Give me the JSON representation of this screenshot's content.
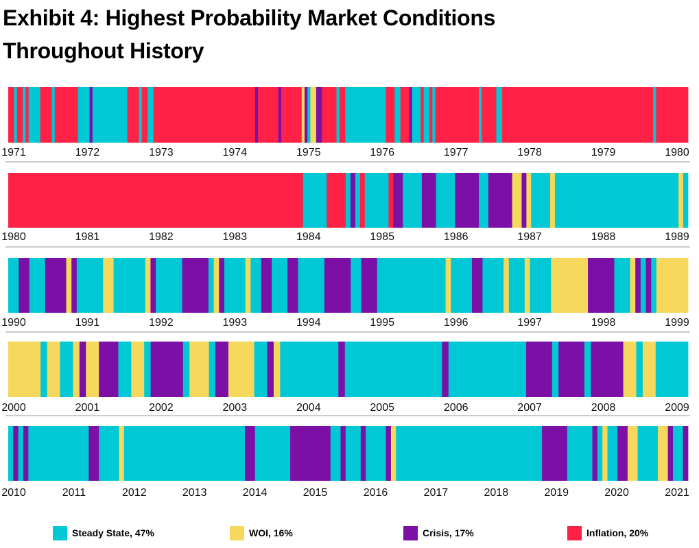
{
  "chart_data": {
    "type": "regime-strip",
    "title": "Exhibit 4: Highest Probability Market Conditions Throughout History",
    "title_lines": [
      "Exhibit 4: Highest Probability Market Conditions",
      "Throughout History"
    ],
    "categories": [
      {
        "key": "S",
        "name": "Steady State",
        "share": "47%",
        "label": "Steady State, 47%",
        "color": "#00C8D4"
      },
      {
        "key": "W",
        "name": "WOI",
        "share": "16%",
        "label": "WOI, 16%",
        "color": "#F5D85C"
      },
      {
        "key": "C",
        "name": "Crisis",
        "share": "17%",
        "label": "Crisis, 17%",
        "color": "#7B0FA6"
      },
      {
        "key": "I",
        "name": "Inflation",
        "share": "20%",
        "label": "Inflation, 20%",
        "color": "#FF2146"
      }
    ],
    "rows": [
      {
        "ticks": [
          "1971",
          "1972",
          "1973",
          "1974",
          "1975",
          "1976",
          "1977",
          "1978",
          "1979",
          "1980"
        ],
        "segments": "IISIISISSSSIIIISIIIIIIIISSSSCSSSSSSSSSSSSIIIISIISSIIIIIIIIIIIIIIIIIIIIIIIIIIIIIIIIIIICIIIIIIICIIIIIIIWCSWWCCIIIIISIISSSSSSSSSSSSSSIIISSIIICSSSISSISIIIIIIIIIIIIIIISIIIIISSIIIIIIIIIIIIIIIIIIIIIIIIIIIIIIIIIIIIIIIIIIIIIIIIIIIISIIIIIIIIIII"
      },
      {
        "ticks": [
          "1980",
          "1981",
          "1982",
          "1983",
          "1984",
          "1985",
          "1986",
          "1987",
          "1988",
          "1989"
        ],
        "segments": "IIIIIIIIIIIIIIIIIIIIIIIIIIIIIIIIIIIIIIIIIIIIIIIIIIIIIIIIIIIIIISSSSSIIIISCSISSSSSICCSSSSCCCSSSSCCCCCSSCCCCCWWCWSSSSWSSSSSSSSSSSSSSSSSSSSSSSSSSWS"
      },
      {
        "ticks": [
          "1990",
          "1991",
          "1992",
          "1993",
          "1994",
          "1995",
          "1996",
          "1997",
          "1998",
          "1999"
        ],
        "segments": "SSCCSSSCCCCWCSSSSSWWSSSSSSWCSSSSSCCCCCSWCSSSSWSSCCSSSCCSSSSSCCCCCSSCCCSSSSSSSSSSSSSWSSSSCCSSSSWSSSWSSSSWWWWWWWCCCCCSSSWCSCSWWWWWW"
      },
      {
        "ticks": [
          "2000",
          "2001",
          "2002",
          "2003",
          "2004",
          "2005",
          "2006",
          "2007",
          "2008",
          "2009"
        ],
        "segments": "WWWWWSWWSSWCWWCCCSSWWSCCCCCSWWWSCCWWWWSSCWSSSSSSSSSCSSSSSSSSSSSSSSSCSSSSSSSSSSSSCCCCSCCCCSCCCCCWWSWWSSSSS"
      },
      {
        "ticks": [
          "2010",
          "2011",
          "2012",
          "2013",
          "2014",
          "2015",
          "2016",
          "2017",
          "2018",
          "2019",
          "2020",
          "2021"
        ],
        "segments": "SCSCSSSSSSSSSSSSCCSSSSWSSSSSSSSSSSSSSSSSSSSSSSSCCSSSSSSSCCCCCCCCSSCSSSCSSSSCWSSSSSSSSSSSSSSSSSSSSSSSSSSSSSCCCCCSSSSSCSWSSCCWWSSSSWWCSSC"
      }
    ]
  }
}
